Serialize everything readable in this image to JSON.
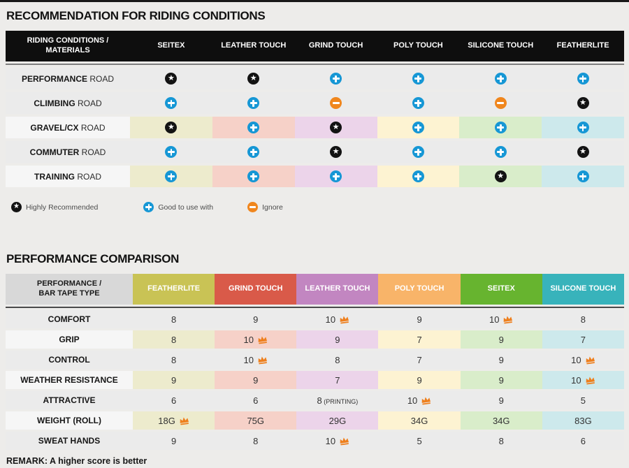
{
  "palette": {
    "icon_star": "#131313",
    "icon_plus": "#1697d5",
    "icon_minus": "#f0861d",
    "crown": "#ee7f1d",
    "row_gray": "#ebebeb",
    "tinted_label": "#f6f6f6",
    "column_tints": [
      "#edebcd",
      "#f6d1c8",
      "#ecd4ea",
      "#fdf3d2",
      "#d9edca",
      "#cde9ec"
    ]
  },
  "riding_table": {
    "title": "RECOMMENDATION FOR RIDING CONDITIONS",
    "corner_line1": "RIDING CONDITIONS /",
    "corner_line2": "MATERIALS",
    "columns": [
      "SEITEX",
      "LEATHER TOUCH",
      "GRIND TOUCH",
      "POLY TOUCH",
      "SILICONE TOUCH",
      "FEATHERLITE"
    ],
    "rows": [
      {
        "name": "PERFORMANCE",
        "suffix": "ROAD",
        "tinted": false,
        "cells": [
          "star",
          "star",
          "plus",
          "plus",
          "plus",
          "plus"
        ]
      },
      {
        "name": "CLIMBING",
        "suffix": "ROAD",
        "tinted": false,
        "cells": [
          "plus",
          "plus",
          "minus",
          "plus",
          "minus",
          "star"
        ]
      },
      {
        "name": "GRAVEL/CX",
        "suffix": "ROAD",
        "tinted": true,
        "cells": [
          "star",
          "plus",
          "star",
          "plus",
          "plus",
          "plus"
        ]
      },
      {
        "name": "COMMUTER",
        "suffix": "ROAD",
        "tinted": false,
        "cells": [
          "plus",
          "plus",
          "star",
          "plus",
          "plus",
          "star"
        ]
      },
      {
        "name": "TRAINING",
        "suffix": "ROAD",
        "tinted": true,
        "cells": [
          "plus",
          "plus",
          "plus",
          "plus",
          "star",
          "plus"
        ]
      }
    ],
    "legend": [
      {
        "icon": "star",
        "label": "Highly Recommended"
      },
      {
        "icon": "plus",
        "label": "Good to use with"
      },
      {
        "icon": "minus",
        "label": "Ignore"
      }
    ]
  },
  "performance_table": {
    "title": "PERFORMANCE COMPARISON",
    "corner_line1": "PERFORMANCE /",
    "corner_line2": "BAR TAPE TYPE",
    "columns": [
      {
        "label": "FEATHERLITE",
        "header_color": "#c9c355"
      },
      {
        "label": "GRIND TOUCH",
        "header_color": "#d95a49"
      },
      {
        "label": "LEATHER TOUCH",
        "header_color": "#c286c1"
      },
      {
        "label": "POLY TOUCH",
        "header_color": "#f8b469"
      },
      {
        "label": "SEITEX",
        "header_color": "#67b42f"
      },
      {
        "label": "SILICONE TOUCH",
        "header_color": "#38b3bb"
      }
    ],
    "rows": [
      {
        "label": "COMFORT",
        "tinted": false,
        "cells": [
          {
            "value": "8"
          },
          {
            "value": "9"
          },
          {
            "value": "10",
            "crown": true
          },
          {
            "value": "9"
          },
          {
            "value": "10",
            "crown": true
          },
          {
            "value": "8"
          }
        ]
      },
      {
        "label": "GRIP",
        "tinted": true,
        "cells": [
          {
            "value": "8"
          },
          {
            "value": "10",
            "crown": true
          },
          {
            "value": "9"
          },
          {
            "value": "7"
          },
          {
            "value": "9"
          },
          {
            "value": "7"
          }
        ]
      },
      {
        "label": "CONTROL",
        "tinted": false,
        "cells": [
          {
            "value": "8"
          },
          {
            "value": "10",
            "crown": true
          },
          {
            "value": "8"
          },
          {
            "value": "7"
          },
          {
            "value": "9"
          },
          {
            "value": "10",
            "crown": true
          }
        ]
      },
      {
        "label": "WEATHER RESISTANCE",
        "tinted": true,
        "cells": [
          {
            "value": "9"
          },
          {
            "value": "9"
          },
          {
            "value": "7"
          },
          {
            "value": "9"
          },
          {
            "value": "9"
          },
          {
            "value": "10",
            "crown": true
          }
        ]
      },
      {
        "label": "ATTRACTIVE",
        "tinted": false,
        "cells": [
          {
            "value": "6"
          },
          {
            "value": "6"
          },
          {
            "value": "8",
            "suffix": " (PRINTING)"
          },
          {
            "value": "10",
            "crown": true
          },
          {
            "value": "9"
          },
          {
            "value": "5"
          }
        ]
      },
      {
        "label": "WEIGHT (ROLL)",
        "tinted": true,
        "cells": [
          {
            "value": "18G",
            "crown": true
          },
          {
            "value": "75G"
          },
          {
            "value": "29G"
          },
          {
            "value": "34G"
          },
          {
            "value": "34G"
          },
          {
            "value": "83G"
          }
        ]
      },
      {
        "label": "SWEAT HANDS",
        "tinted": false,
        "cells": [
          {
            "value": "9"
          },
          {
            "value": "8"
          },
          {
            "value": "10",
            "crown": true
          },
          {
            "value": "5"
          },
          {
            "value": "8"
          },
          {
            "value": "6"
          }
        ]
      }
    ],
    "remark": "REMARK: A higher score is better"
  }
}
